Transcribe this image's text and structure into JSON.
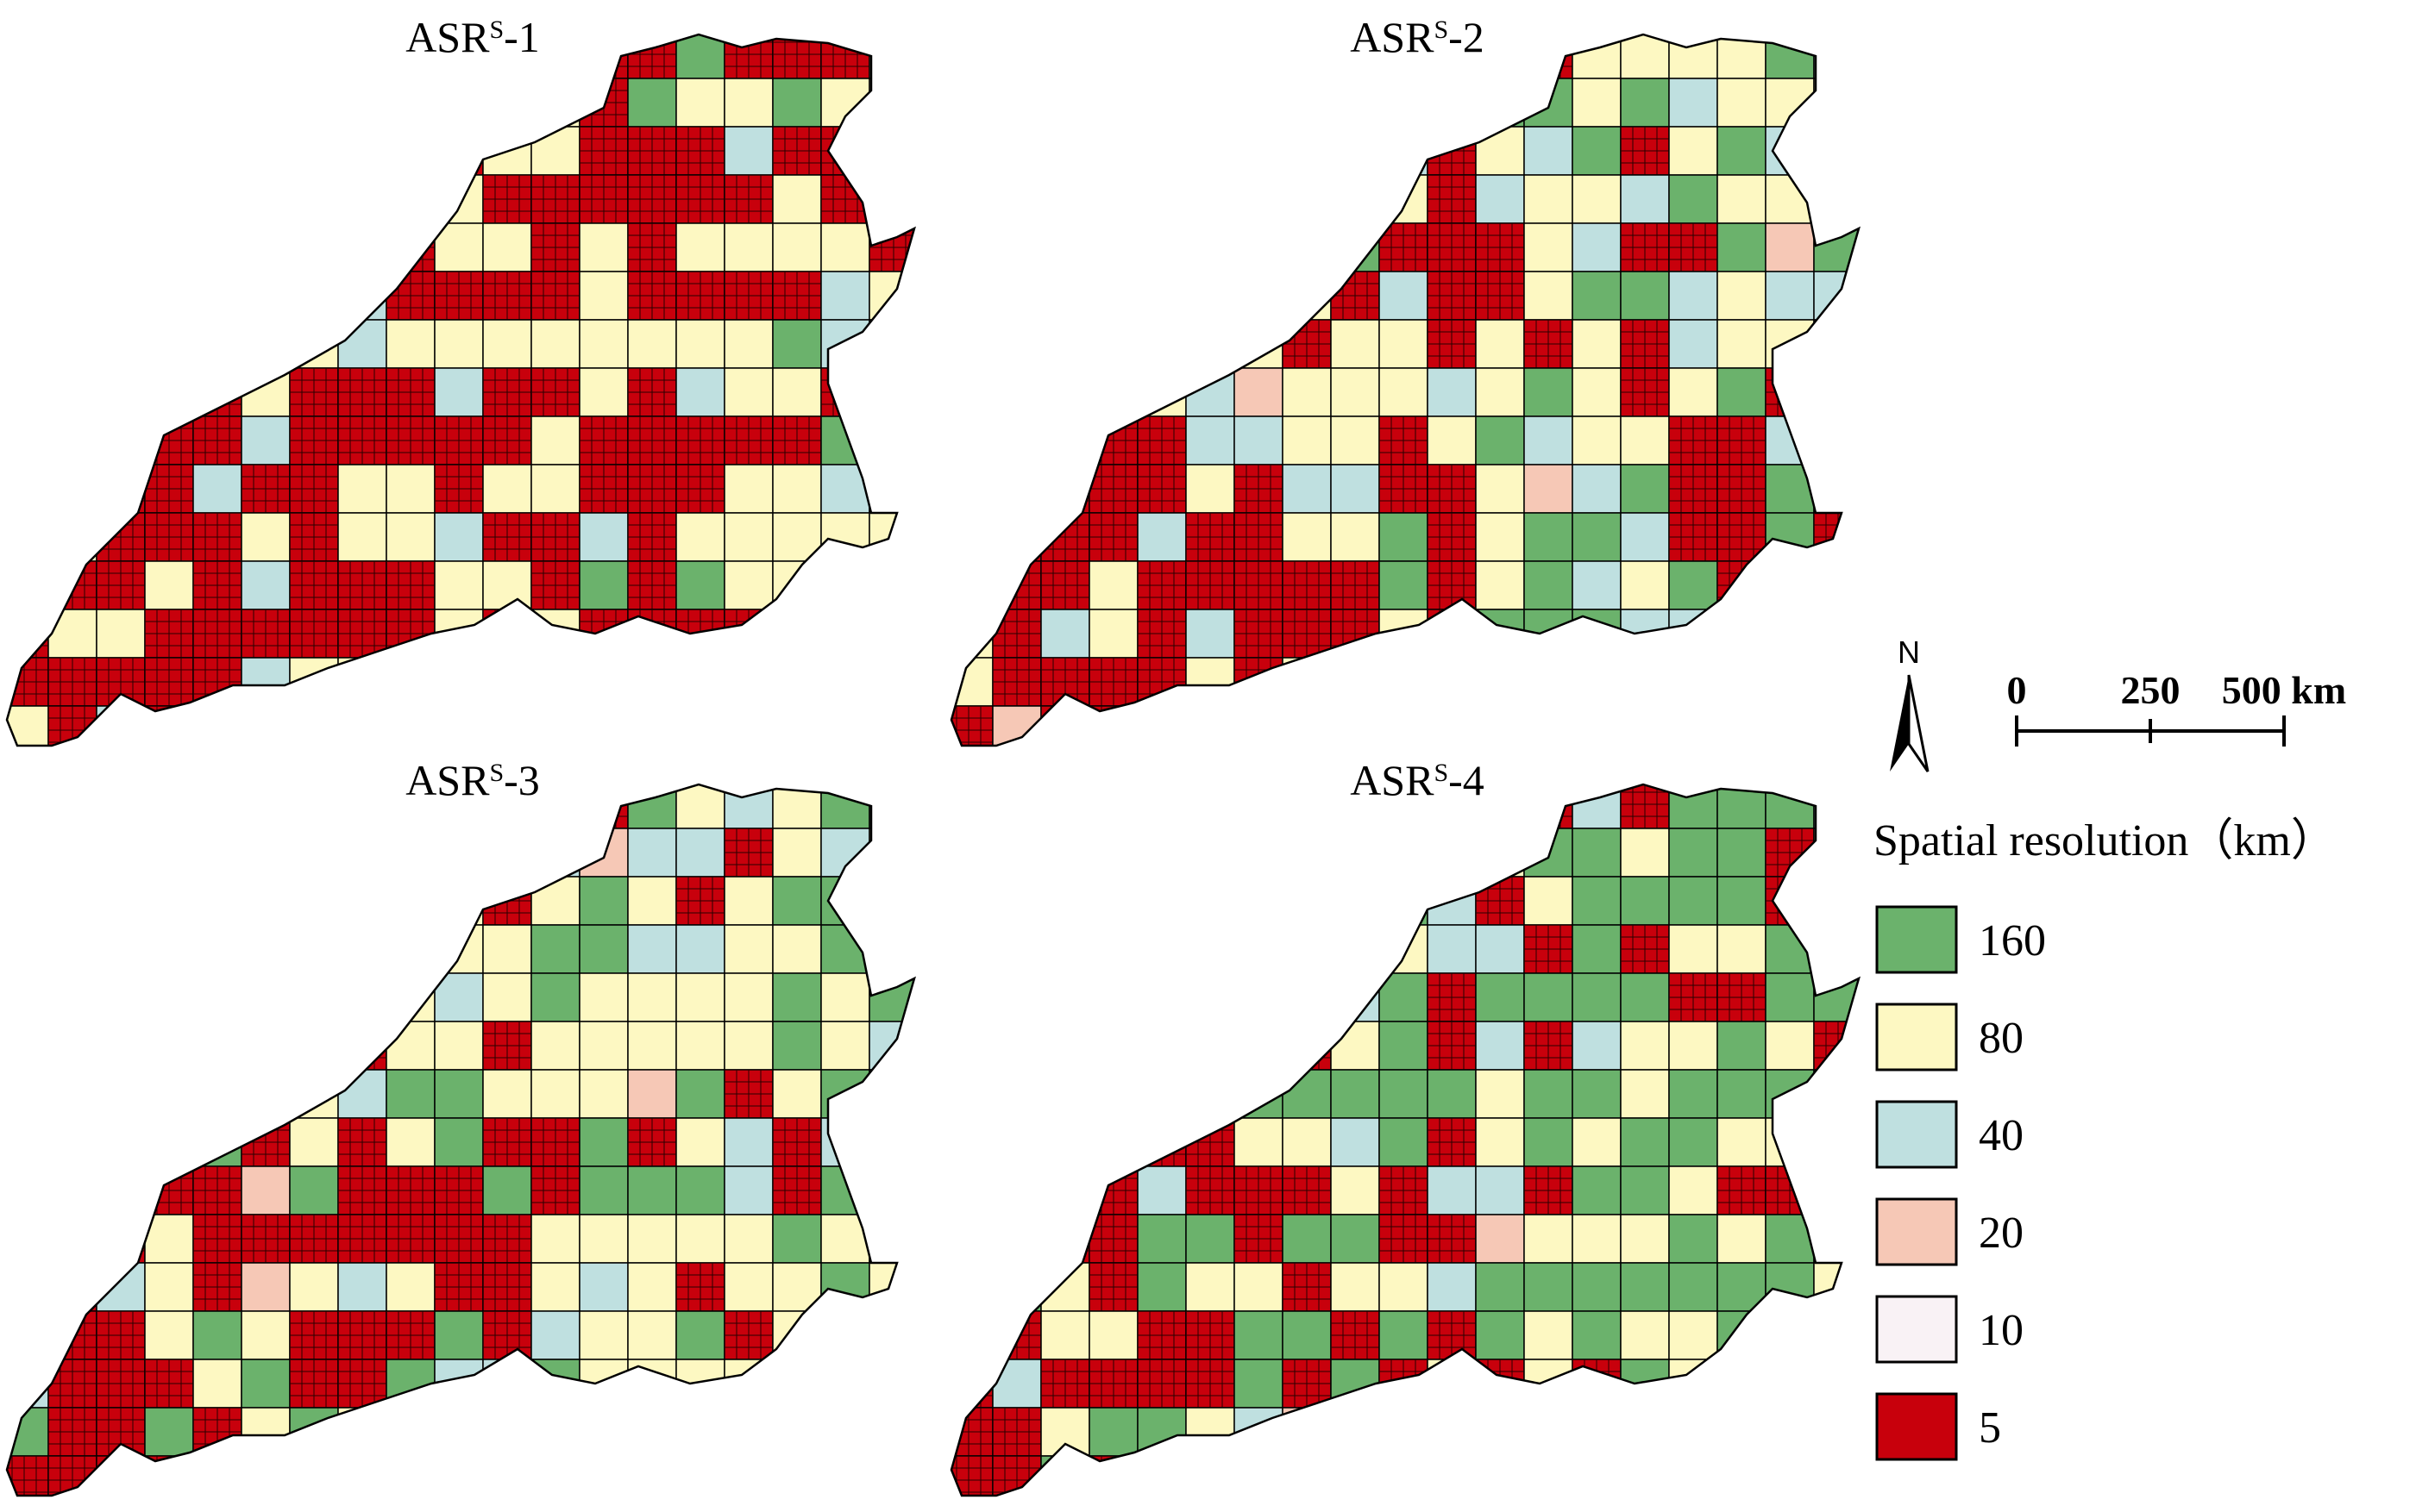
{
  "panels": [
    {
      "title": "ASR",
      "sup": "S",
      "suffix": "-1",
      "mix": {
        "160": 0.02,
        "80": 0.28,
        "40": 0.08,
        "5": 0.62
      }
    },
    {
      "title": "ASR",
      "sup": "S",
      "suffix": "-2",
      "mix": {
        "160": 0.14,
        "80": 0.26,
        "40": 0.16,
        "20": 0.02,
        "5": 0.42
      }
    },
    {
      "title": "ASR",
      "sup": "S",
      "suffix": "-3",
      "mix": {
        "160": 0.22,
        "80": 0.34,
        "40": 0.12,
        "20": 0.02,
        "5": 0.3
      }
    },
    {
      "title": "ASR",
      "sup": "S",
      "suffix": "-4",
      "mix": {
        "160": 0.36,
        "80": 0.28,
        "40": 0.1,
        "20": 0.02,
        "5": 0.24
      }
    }
  ],
  "north_arrow": {
    "label": "N"
  },
  "scale_bar": {
    "ticks": [
      "0",
      "250",
      "500 km"
    ]
  },
  "legend": {
    "title": "Spatial resolution（km）",
    "items": [
      {
        "label": "160",
        "color": "#6bb26c"
      },
      {
        "label": "80",
        "color": "#fdf8c2"
      },
      {
        "label": "40",
        "color": "#bfe0e0"
      },
      {
        "label": "20",
        "color": "#f6c8b6"
      },
      {
        "label": "10",
        "color": "#f9f2f5"
      },
      {
        "label": "5",
        "color": "#c8000c"
      }
    ]
  }
}
